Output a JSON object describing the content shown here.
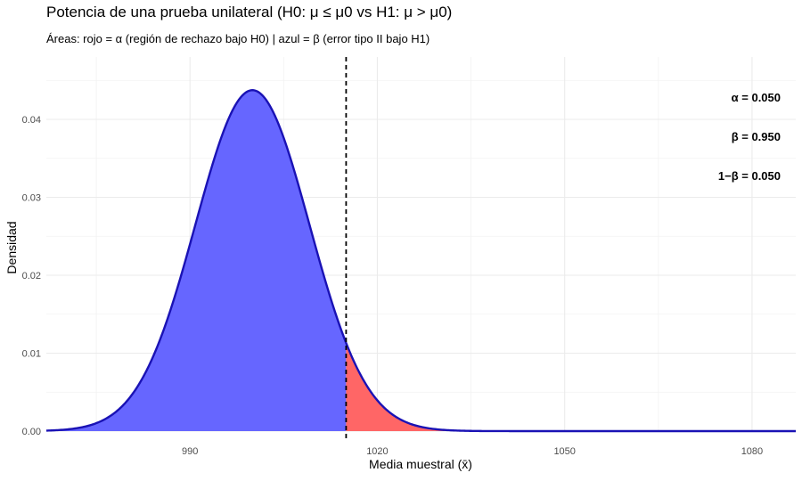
{
  "chart_data": {
    "type": "area",
    "title": "Potencia de una prueba unilateral (H0: μ ≤ μ0  vs  H1: μ > μ0)",
    "subtitle": "Áreas: rojo = α (región de rechazo bajo H0)  |  azul = β (error tipo II bajo H1)",
    "xlabel": "Media muestral (x̄)",
    "ylabel": "Densidad",
    "xlim": [
      967,
      1087
    ],
    "ylim": [
      0,
      0.048
    ],
    "x_ticks": [
      990,
      1020,
      1050,
      1080
    ],
    "x_tick_labels": [
      "990",
      "1020",
      "1050",
      "1080"
    ],
    "y_ticks": [
      0.0,
      0.01,
      0.02,
      0.03,
      0.04
    ],
    "y_tick_labels": [
      "0.00",
      "0.01",
      "0.02",
      "0.03",
      "0.04"
    ],
    "grid": true,
    "distribution": {
      "mean": 1000,
      "sd": 9.12
    },
    "critical_value": 1015,
    "series": [
      {
        "name": "β",
        "color": "#6666ff",
        "x_from": 967,
        "x_to": 1015
      },
      {
        "name": "α",
        "color": "#ff6666",
        "x_from": 1015,
        "x_to": 1087
      }
    ],
    "curve_color": "#1a12b5",
    "annotations": [
      {
        "label": "α = 0.050"
      },
      {
        "label": "β = 0.950"
      },
      {
        "label": "1−β = 0.050"
      }
    ]
  }
}
